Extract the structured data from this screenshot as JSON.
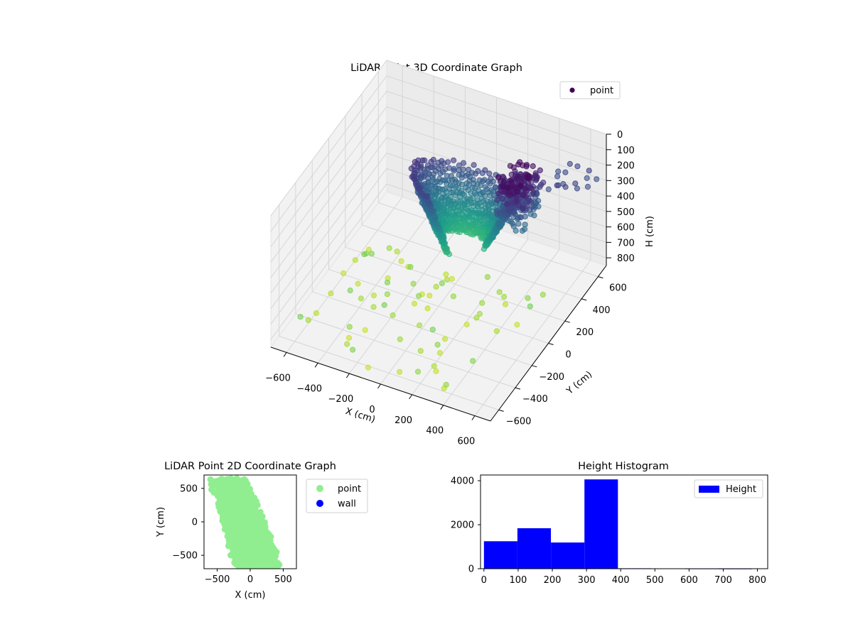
{
  "chart_data": [
    {
      "type": "scatter",
      "projection": "3d",
      "title": "LiDAR Point 3D Coordinate Graph",
      "xlabel": "X (cm)",
      "ylabel": "Y (cm)",
      "zlabel": "H (cm)",
      "xticks": [
        -600,
        -400,
        -200,
        0,
        200,
        400,
        600
      ],
      "yticks": [
        -600,
        -400,
        -200,
        0,
        200,
        400,
        600
      ],
      "zticks": [
        0,
        100,
        200,
        300,
        400,
        500,
        600,
        700,
        800
      ],
      "xlim": [
        -700,
        700
      ],
      "ylim": [
        -700,
        700
      ],
      "zlim": [
        0,
        850
      ],
      "z_inverted": true,
      "grid": true,
      "colormap": "viridis",
      "legend": {
        "position": "top-right",
        "entries": [
          {
            "label": "point",
            "color": "#440154"
          }
        ]
      },
      "series": [
        {
          "name": "point"
        }
      ]
    },
    {
      "type": "scatter",
      "title": "LiDAR Point 2D Coordinate Graph",
      "xlabel": "X (cm)",
      "ylabel": "Y (cm)",
      "xticks": [
        -500,
        0,
        500
      ],
      "yticks": [
        500,
        0,
        -500
      ],
      "xlim": [
        -700,
        700
      ],
      "ylim": [
        -700,
        700
      ],
      "grid": false,
      "legend": {
        "position": "outside-right",
        "entries": [
          {
            "label": "point",
            "color": "#90ee90"
          },
          {
            "label": "wall",
            "color": "#0000ff"
          }
        ]
      },
      "series": [
        {
          "name": "point"
        },
        {
          "name": "wall"
        }
      ]
    },
    {
      "type": "bar",
      "histogram": true,
      "title": "Height Histogram",
      "xlabel": "",
      "ylabel": "",
      "bins": [
        {
          "x0": 0,
          "x1": 98,
          "count": 1250
        },
        {
          "x0": 98,
          "x1": 196,
          "count": 1840
        },
        {
          "x0": 196,
          "x1": 294,
          "count": 1190
        },
        {
          "x0": 294,
          "x1": 392,
          "count": 4060
        },
        {
          "x0": 392,
          "x1": 490,
          "count": 20
        },
        {
          "x0": 490,
          "x1": 588,
          "count": 15
        },
        {
          "x0": 588,
          "x1": 686,
          "count": 12
        },
        {
          "x0": 686,
          "x1": 784,
          "count": 10
        }
      ],
      "xticks": [
        0,
        100,
        200,
        300,
        400,
        500,
        600,
        700,
        800
      ],
      "yticks": [
        0,
        2000,
        4000
      ],
      "xlim": [
        -10,
        830
      ],
      "ylim": [
        0,
        4260
      ],
      "bar_color": "#0000ff",
      "legend": {
        "position": "top-right",
        "entries": [
          {
            "label": "Height",
            "color": "#0000ff"
          }
        ]
      },
      "series": [
        {
          "name": "Height"
        }
      ]
    }
  ]
}
